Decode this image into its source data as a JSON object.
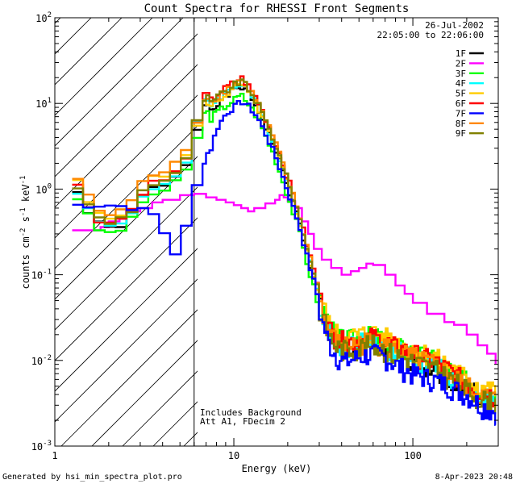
{
  "chart_data": {
    "type": "line",
    "title": "Count Spectra for RHESSI Front Segments",
    "xlabel": "Energy (keV)",
    "ylabel_parts": [
      "counts cm",
      "-2",
      " s",
      "-1",
      " keV",
      "-1"
    ],
    "x_scale": "log",
    "y_scale": "log",
    "xlim": [
      1,
      300
    ],
    "ylim": [
      0.001,
      100
    ],
    "x_tick_labels": [
      {
        "value": 1,
        "label": "1"
      },
      {
        "value": 10,
        "label": "10"
      },
      {
        "value": 100,
        "label": "100"
      }
    ],
    "y_tick_labels": [
      {
        "value": 0.001,
        "base": "10",
        "exp": "-3"
      },
      {
        "value": 0.01,
        "base": "10",
        "exp": "-2"
      },
      {
        "value": 0.1,
        "base": "10",
        "exp": "-1"
      },
      {
        "value": 1,
        "base": "10",
        "exp": "0"
      },
      {
        "value": 10,
        "base": "10",
        "exp": "1"
      },
      {
        "value": 100,
        "base": "10",
        "exp": "2"
      }
    ],
    "hatched_region_xmax": 6,
    "time_info": [
      "26-Jul-2002",
      "22:05:00 to 22:06:00"
    ],
    "annotations": [
      "Includes Background",
      "Att A1, FDecim  2"
    ],
    "footer_left": "Generated by hsi_min_spectra_plot.pro",
    "footer_right": "8-Apr-2023 20:48",
    "series": [
      {
        "name": "1F",
        "color": "#000000",
        "low_scale": 0.85,
        "peak_scale": 1.0,
        "tail_scale": 0.95,
        "seed": 1
      },
      {
        "name": "2F",
        "color": "#ff00ff",
        "special": true,
        "points": [
          [
            1.25,
            0.33
          ],
          [
            1.6,
            0.33
          ],
          [
            1.8,
            0.36
          ],
          [
            2.0,
            0.42
          ],
          [
            2.3,
            0.45
          ],
          [
            2.5,
            0.55
          ],
          [
            3.0,
            0.6
          ],
          [
            3.5,
            0.7
          ],
          [
            4,
            0.75
          ],
          [
            5,
            0.85
          ],
          [
            6,
            0.88
          ],
          [
            7,
            0.8
          ],
          [
            8,
            0.75
          ],
          [
            9,
            0.7
          ],
          [
            10,
            0.65
          ],
          [
            11,
            0.6
          ],
          [
            12,
            0.55
          ],
          [
            13,
            0.6
          ],
          [
            15,
            0.68
          ],
          [
            17,
            0.75
          ],
          [
            18,
            0.85
          ],
          [
            19,
            0.8
          ],
          [
            20,
            0.72
          ],
          [
            22,
            0.6
          ],
          [
            24,
            0.42
          ],
          [
            26,
            0.3
          ],
          [
            28,
            0.2
          ],
          [
            31,
            0.15
          ],
          [
            35,
            0.12
          ],
          [
            40,
            0.1
          ],
          [
            45,
            0.11
          ],
          [
            50,
            0.12
          ],
          [
            55,
            0.135
          ],
          [
            60,
            0.13
          ],
          [
            70,
            0.1
          ],
          [
            80,
            0.075
          ],
          [
            90,
            0.06
          ],
          [
            100,
            0.047
          ],
          [
            120,
            0.035
          ],
          [
            150,
            0.028
          ],
          [
            170,
            0.026
          ],
          [
            200,
            0.02
          ],
          [
            230,
            0.015
          ],
          [
            260,
            0.012
          ],
          [
            290,
            0.009
          ]
        ]
      },
      {
        "name": "3F",
        "color": "#00ff00",
        "low_scale": 0.75,
        "peak_scale": 0.78,
        "tail_scale": 1.15,
        "seed": 3
      },
      {
        "name": "4F",
        "color": "#00ffff",
        "low_scale": 0.9,
        "peak_scale": 1.1,
        "tail_scale": 1.0,
        "seed": 4
      },
      {
        "name": "5F",
        "color": "#ffcc00",
        "low_scale": 1.1,
        "peak_scale": 1.05,
        "tail_scale": 1.25,
        "seed": 5
      },
      {
        "name": "6F",
        "color": "#ff0000",
        "low_scale": 1.0,
        "peak_scale": 1.25,
        "tail_scale": 1.1,
        "seed": 6
      },
      {
        "name": "7F",
        "color": "#0000ff",
        "special": true,
        "peak_scale": 0.65,
        "tail_scale": 0.7,
        "seed": 7
      },
      {
        "name": "8F",
        "color": "#ff8800",
        "low_scale": 1.25,
        "peak_scale": 1.2,
        "tail_scale": 1.0,
        "seed": 8
      },
      {
        "name": "9F",
        "color": "#808000",
        "low_scale": 1.0,
        "peak_scale": 1.15,
        "tail_scale": 0.9,
        "seed": 9
      }
    ],
    "base_spectrum": [
      [
        1.25,
        1.2
      ],
      [
        1.45,
        0.95
      ],
      [
        1.6,
        0.5
      ],
      [
        2.0,
        0.4
      ],
      [
        2.3,
        0.45
      ],
      [
        2.6,
        0.5
      ],
      [
        3.0,
        0.9
      ],
      [
        3.6,
        1.2
      ],
      [
        4.2,
        1.3
      ],
      [
        5.0,
        1.7
      ],
      [
        5.7,
        2.5
      ],
      [
        6.2,
        5.0
      ],
      [
        6.6,
        8.0
      ],
      [
        7.0,
        11.0
      ],
      [
        7.4,
        8.5
      ],
      [
        8.0,
        10.0
      ],
      [
        9.0,
        12.0
      ],
      [
        10.0,
        14.0
      ],
      [
        11.0,
        16.0
      ],
      [
        12.0,
        13.0
      ],
      [
        13.5,
        9.0
      ],
      [
        15.0,
        5.5
      ],
      [
        17.0,
        3.0
      ],
      [
        19.0,
        1.5
      ],
      [
        21.0,
        0.8
      ],
      [
        23.0,
        0.45
      ],
      [
        25.0,
        0.22
      ],
      [
        27.0,
        0.12
      ],
      [
        29.0,
        0.07
      ],
      [
        31.0,
        0.04
      ],
      [
        34.0,
        0.022
      ],
      [
        38.0,
        0.016
      ],
      [
        42.0,
        0.015
      ],
      [
        50.0,
        0.016
      ],
      [
        60.0,
        0.017
      ],
      [
        70.0,
        0.015
      ],
      [
        80.0,
        0.013
      ],
      [
        100.0,
        0.011
      ],
      [
        130.0,
        0.009
      ],
      [
        160.0,
        0.007
      ],
      [
        200.0,
        0.005
      ],
      [
        240.0,
        0.004
      ],
      [
        290.0,
        0.0035
      ]
    ]
  }
}
